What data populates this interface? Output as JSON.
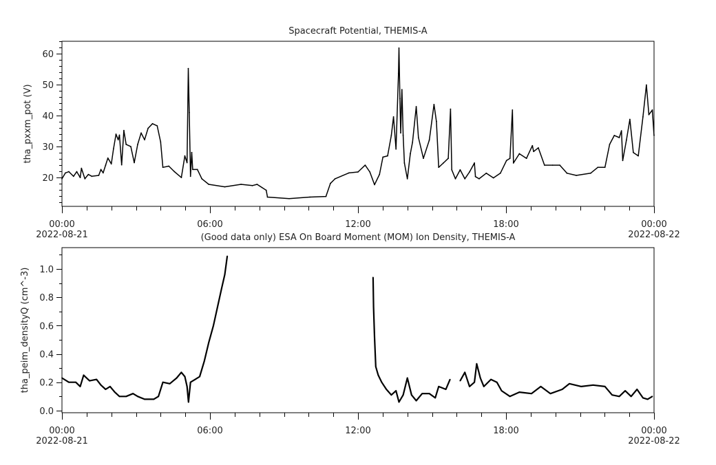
{
  "chart_data": [
    {
      "type": "line",
      "title": "Spacecraft Potential, THEMIS-A",
      "xlabel": "",
      "ylabel": "tha_pxxm_pot (V)",
      "x_unit": "hours since 2022-08-21 00:00",
      "xlim": [
        0,
        24
      ],
      "ylim": [
        10.7,
        64
      ],
      "yticks": [
        20,
        30,
        40,
        50,
        60
      ],
      "xtick_labels": [
        {
          "x": 0,
          "time": "00:00",
          "date": "2022-08-21"
        },
        {
          "x": 6,
          "time": "06:00",
          "date": ""
        },
        {
          "x": 12,
          "time": "12:00",
          "date": ""
        },
        {
          "x": 18,
          "time": "18:00",
          "date": ""
        },
        {
          "x": 24,
          "time": "00:00",
          "date": "2022-08-22"
        }
      ],
      "grid": false,
      "color": "#000000",
      "series": [
        {
          "x": [
            0,
            0.14,
            0.28,
            0.47,
            0.6,
            0.74,
            0.79,
            0.93,
            1.07,
            1.21,
            1.49,
            1.58,
            1.67,
            1.77,
            1.86,
            2.0,
            2.09,
            2.19,
            2.28,
            2.33,
            2.42,
            2.51,
            2.6,
            2.79,
            2.93,
            3.07,
            3.21,
            3.35,
            3.49,
            3.67,
            3.86,
            4.0,
            4.09,
            4.33,
            4.56,
            4.84,
            4.98,
            5.07,
            5.12,
            5.16,
            5.21,
            5.26,
            5.3,
            5.49,
            5.67,
            5.95,
            6.6,
            7.26,
            7.72,
            7.91,
            8.28,
            8.33,
            9.21,
            10.05,
            10.7,
            10.88,
            11.07,
            11.63,
            12.0,
            12.29,
            12.48,
            12.67,
            12.87,
            13.01,
            13.2,
            13.35,
            13.44,
            13.54,
            13.64,
            13.66,
            13.7,
            13.73,
            13.78,
            13.83,
            13.88,
            14.0,
            14.12,
            14.21,
            14.36,
            14.45,
            14.65,
            14.89,
            15.08,
            15.18,
            15.27,
            15.46,
            15.66,
            15.75,
            15.8,
            15.95,
            16.14,
            16.33,
            16.52,
            16.72,
            16.76,
            16.91,
            17.2,
            17.49,
            17.77,
            18.02,
            18.16,
            18.26,
            18.3,
            18.54,
            18.83,
            19.07,
            19.12,
            19.31,
            19.56,
            19.89,
            20.18,
            20.47,
            20.85,
            21.43,
            21.72,
            22.01,
            22.2,
            22.39,
            22.59,
            22.68,
            22.73,
            22.88,
            23.02,
            23.16,
            23.36,
            23.55,
            23.69,
            23.79,
            23.93,
            24.0
          ],
          "y": [
            19.6,
            21.5,
            21.9,
            20.4,
            21.9,
            20,
            23,
            19.6,
            21,
            20.4,
            20.7,
            22.6,
            21.5,
            24,
            26.3,
            24.4,
            29.3,
            34,
            32.2,
            33.7,
            24.1,
            35.2,
            30.7,
            30,
            24.8,
            30.7,
            34.4,
            32.2,
            35.9,
            37.4,
            36.7,
            31.5,
            23.3,
            23.7,
            21.9,
            20,
            27,
            24.8,
            55.2,
            41,
            20.4,
            28.1,
            22.6,
            22.6,
            19.6,
            17.8,
            17,
            17.8,
            17.4,
            17.8,
            15.9,
            13.7,
            13.2,
            13.7,
            13.9,
            18.1,
            19.6,
            21.5,
            21.8,
            24,
            21.8,
            17.7,
            21,
            26.6,
            27,
            33.6,
            39.6,
            29.2,
            53.6,
            61.8,
            45.5,
            34.4,
            48.4,
            33.6,
            24.7,
            19.6,
            27.7,
            31.4,
            42.9,
            32.9,
            26.2,
            32.1,
            43.6,
            38.1,
            23.3,
            24.7,
            26.2,
            42.1,
            22.5,
            19.6,
            22.5,
            19.6,
            21.8,
            24.7,
            20.3,
            19.6,
            21.4,
            19.9,
            21.4,
            25.5,
            26.2,
            41.8,
            24.7,
            27.7,
            26.2,
            30.3,
            28.4,
            29.6,
            24,
            24,
            24,
            21.4,
            20.7,
            21.4,
            23.3,
            23.3,
            30.7,
            33.6,
            32.9,
            35.1,
            25.5,
            32.1,
            38.8,
            28.1,
            27,
            39.6,
            49.9,
            40.3,
            41.8,
            33.6
          ]
        }
      ]
    },
    {
      "type": "line",
      "title": "(Good data only) ESA On Board Moment (MOM) Ion Density, THEMIS-A",
      "xlabel": "",
      "ylabel": "tha_peim_densityQ (cm^-3)",
      "x_unit": "hours since 2022-08-21 00:00",
      "xlim": [
        0,
        24
      ],
      "ylim": [
        -0.015,
        1.15
      ],
      "yticks": [
        0.0,
        0.2,
        0.4,
        0.6,
        0.8,
        1.0
      ],
      "ytick_labels": [
        "0.0",
        "0.2",
        "0.4",
        "0.6",
        "0.8",
        "1.0"
      ],
      "xtick_labels": [
        {
          "x": 0,
          "time": "00:00",
          "date": "2022-08-21"
        },
        {
          "x": 6,
          "time": "06:00",
          "date": ""
        },
        {
          "x": 12,
          "time": "12:00",
          "date": ""
        },
        {
          "x": 18,
          "time": "18:00",
          "date": ""
        },
        {
          "x": 24,
          "time": "00:00",
          "date": "2022-08-22"
        }
      ],
      "grid": false,
      "color": "#000000",
      "series": [
        {
          "x": [
            0,
            0.28,
            0.56,
            0.74,
            0.88,
            1.12,
            1.4,
            1.58,
            1.77,
            1.95,
            2.14,
            2.33,
            2.6,
            2.88,
            3.07,
            3.35,
            3.72,
            3.91,
            4.09,
            4.37,
            4.65,
            4.84,
            4.98,
            5.07,
            5.13,
            5.21,
            5.4,
            5.58,
            5.77,
            5.95,
            6.14,
            6.33,
            6.47,
            6.6,
            6.7,
            null,
            12.61,
            12.63,
            12.67,
            12.72,
            12.82,
            12.96,
            13.15,
            13.35,
            13.54,
            13.66,
            13.83,
            14.0,
            14.17,
            14.36,
            14.6,
            14.89,
            15.13,
            15.27,
            15.56,
            15.73,
            null,
            16.14,
            16.33,
            16.52,
            16.72,
            16.81,
            16.96,
            17.1,
            17.39,
            17.63,
            17.82,
            18.16,
            18.54,
            19.03,
            19.41,
            19.8,
            20.28,
            20.57,
            21.05,
            21.53,
            22.01,
            22.3,
            22.59,
            22.83,
            23.07,
            23.31,
            23.55,
            23.74,
            23.93
          ],
          "y": [
            0.23,
            0.2,
            0.2,
            0.17,
            0.25,
            0.21,
            0.22,
            0.18,
            0.15,
            0.17,
            0.13,
            0.1,
            0.1,
            0.12,
            0.1,
            0.08,
            0.08,
            0.1,
            0.2,
            0.19,
            0.23,
            0.27,
            0.24,
            0.17,
            0.06,
            0.2,
            0.22,
            0.24,
            0.35,
            0.48,
            0.6,
            0.75,
            0.86,
            0.96,
            1.09,
            null,
            0.94,
            0.73,
            0.52,
            0.31,
            0.25,
            0.2,
            0.15,
            0.11,
            0.14,
            0.06,
            0.11,
            0.23,
            0.11,
            0.07,
            0.12,
            0.12,
            0.09,
            0.17,
            0.15,
            0.22,
            null,
            0.21,
            0.27,
            0.17,
            0.2,
            0.33,
            0.23,
            0.17,
            0.22,
            0.2,
            0.14,
            0.1,
            0.13,
            0.12,
            0.17,
            0.12,
            0.15,
            0.19,
            0.17,
            0.18,
            0.17,
            0.11,
            0.1,
            0.14,
            0.1,
            0.15,
            0.09,
            0.08,
            0.1
          ]
        }
      ]
    }
  ]
}
